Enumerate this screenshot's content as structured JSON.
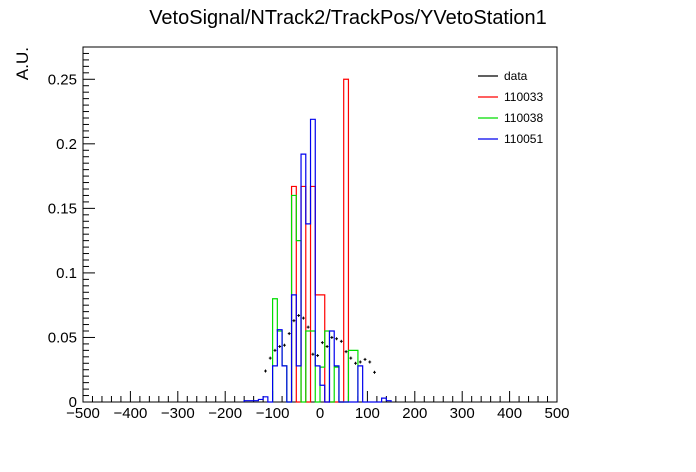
{
  "chart_data": {
    "type": "histogram",
    "title": "VetoSignal/NTrack2/TrackPos/YVetoStation1",
    "xlabel": "",
    "ylabel": "A.U.",
    "xlim": [
      -500,
      500
    ],
    "ylim": [
      0,
      0.275
    ],
    "x_ticks": [
      -500,
      -400,
      -300,
      -200,
      -100,
      0,
      100,
      200,
      300,
      400,
      500
    ],
    "x_tick_labels": [
      "−500",
      "−400",
      "−300",
      "−200",
      "−100",
      "0",
      "100",
      "200",
      "300",
      "400",
      "500"
    ],
    "y_ticks": [
      0,
      0.05,
      0.1,
      0.15,
      0.2,
      0.25
    ],
    "y_tick_labels": [
      "0",
      "0.05",
      "0.1",
      "0.15",
      "0.2",
      "0.25"
    ],
    "bin_width": 10,
    "legend_position": "top-right",
    "series": [
      {
        "name": "data",
        "style": "points",
        "color": "#000000",
        "points": [
          [
            -115,
            0.024
          ],
          [
            -105,
            0.034
          ],
          [
            -95,
            0.04
          ],
          [
            -85,
            0.043
          ],
          [
            -75,
            0.044
          ],
          [
            -65,
            0.053
          ],
          [
            -55,
            0.063
          ],
          [
            -45,
            0.067
          ],
          [
            -35,
            0.065
          ],
          [
            -25,
            0.058
          ],
          [
            -15,
            0.037
          ],
          [
            -5,
            0.036
          ],
          [
            5,
            0.046
          ],
          [
            15,
            0.043
          ],
          [
            25,
            0.05
          ],
          [
            35,
            0.049
          ],
          [
            45,
            0.047
          ],
          [
            55,
            0.039
          ],
          [
            65,
            0.034
          ],
          [
            75,
            0.03
          ],
          [
            85,
            0.031
          ],
          [
            95,
            0.033
          ],
          [
            105,
            0.031
          ],
          [
            115,
            0.023
          ]
        ]
      },
      {
        "name": "110033",
        "style": "step",
        "color": "#ff0000",
        "bins": [
          [
            -60,
            -50,
            0.167
          ],
          [
            -50,
            -40,
            0.0
          ],
          [
            -40,
            -30,
            0.167
          ],
          [
            -30,
            -20,
            0.0
          ],
          [
            -20,
            -10,
            0.167
          ],
          [
            -10,
            0,
            0.083
          ],
          [
            0,
            10,
            0.083
          ],
          [
            10,
            20,
            0.0
          ],
          [
            20,
            30,
            0.0
          ],
          [
            30,
            40,
            0.0
          ],
          [
            40,
            50,
            0.0
          ],
          [
            50,
            60,
            0.25
          ]
        ]
      },
      {
        "name": "110038",
        "style": "step",
        "color": "#00dd00",
        "bins": [
          [
            -100,
            -90,
            0.08
          ],
          [
            -90,
            -80,
            0.055
          ],
          [
            -80,
            -70,
            0.028
          ],
          [
            -70,
            -60,
            0.0
          ],
          [
            -60,
            -50,
            0.16
          ],
          [
            -50,
            -40,
            0.125
          ],
          [
            -40,
            -30,
            0.0
          ],
          [
            -30,
            -20,
            0.055
          ],
          [
            -20,
            -10,
            0.055
          ],
          [
            -10,
            0,
            0.0
          ],
          [
            0,
            10,
            0.027
          ],
          [
            10,
            20,
            0.055
          ],
          [
            20,
            30,
            0.0
          ],
          [
            30,
            40,
            0.027
          ],
          [
            40,
            50,
            0.0
          ],
          [
            50,
            60,
            0.0
          ],
          [
            60,
            70,
            0.04
          ],
          [
            70,
            80,
            0.04
          ]
        ]
      },
      {
        "name": "110051",
        "style": "step",
        "color": "#0000ee",
        "bins": [
          [
            -160,
            -150,
            0.001
          ],
          [
            -150,
            -140,
            0.001
          ],
          [
            -140,
            -130,
            0.001
          ],
          [
            -130,
            -120,
            0.002
          ],
          [
            -120,
            -110,
            0.004
          ],
          [
            -110,
            -100,
            0.0
          ],
          [
            -100,
            -90,
            0.028
          ],
          [
            -90,
            -80,
            0.056
          ],
          [
            -80,
            -70,
            0.028
          ],
          [
            -70,
            -60,
            0.0
          ],
          [
            -60,
            -50,
            0.083
          ],
          [
            -50,
            -40,
            0.028
          ],
          [
            -40,
            -30,
            0.192
          ],
          [
            -30,
            -20,
            0.138
          ],
          [
            -20,
            -10,
            0.219
          ],
          [
            -10,
            0,
            0.028
          ],
          [
            0,
            10,
            0.013
          ],
          [
            10,
            20,
            0.0
          ],
          [
            20,
            30,
            0.055
          ],
          [
            30,
            40,
            0.028
          ],
          [
            40,
            50,
            0.0
          ],
          [
            50,
            60,
            0.0
          ],
          [
            60,
            70,
            0.0
          ],
          [
            70,
            80,
            0.0
          ],
          [
            80,
            90,
            0.028
          ],
          [
            90,
            100,
            0.0
          ],
          [
            100,
            110,
            0.0
          ],
          [
            110,
            120,
            0.0
          ],
          [
            120,
            130,
            0.0
          ],
          [
            130,
            140,
            0.003
          ],
          [
            140,
            150,
            0.001
          ]
        ]
      }
    ]
  }
}
